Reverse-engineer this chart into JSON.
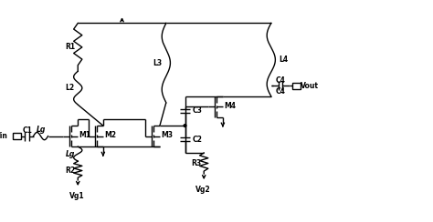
{
  "bg_color": "#ffffff",
  "line_color": "#000000",
  "lw": 1.0,
  "figsize": [
    4.74,
    2.44
  ],
  "dpi": 100,
  "xlim": [
    0,
    100
  ],
  "ylim": [
    0,
    52
  ]
}
